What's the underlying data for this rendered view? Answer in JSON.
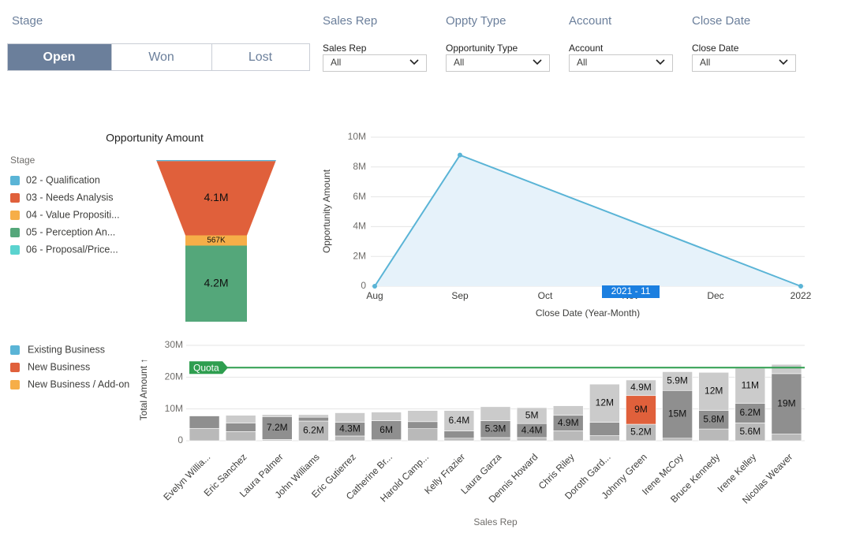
{
  "stage_filter": {
    "label": "Stage",
    "options": [
      "Open",
      "Won",
      "Lost"
    ],
    "selected": 0
  },
  "filters": [
    {
      "header": "Sales Rep",
      "label": "Sales Rep",
      "value": "All"
    },
    {
      "header": "Oppty Type",
      "label": "Opportunity Type",
      "value": "All"
    },
    {
      "header": "Account",
      "label": "Account",
      "value": "All"
    },
    {
      "header": "Close Date",
      "label": "Close Date",
      "value": "All"
    }
  ],
  "chart_data": [
    {
      "type": "funnel",
      "title": "Opportunity Amount",
      "legend_title": "Stage",
      "categories": [
        "02 - Qualification",
        "03 - Needs Analysis",
        "04 - Value Propositi...",
        "05 - Perception An...",
        "06 - Proposal/Price..."
      ],
      "colors": [
        "#5ab4d6",
        "#e0603b",
        "#f6ae48",
        "#54a77a",
        "#5bd3cf"
      ],
      "values": [
        60000,
        4100000,
        567000,
        4200000,
        0
      ],
      "value_labels": [
        null,
        "4.1M",
        "567K",
        "4.2M",
        null
      ]
    },
    {
      "type": "line",
      "ylabel": "Opportunity Amount",
      "xlabel": "Close Date (Year-Month)",
      "categories": [
        "Aug",
        "Sep",
        "Oct",
        "Nov",
        "Dec",
        "2022"
      ],
      "series": [
        {
          "color": "#5ab4d6",
          "x": [
            "Aug",
            "Sep",
            "2022"
          ],
          "values": [
            0,
            8800000,
            0
          ]
        }
      ],
      "ylim": [
        0,
        10000000
      ],
      "yticks": [
        0,
        {
          "value": 2000000,
          "label": "2M"
        },
        {
          "value": 4000000,
          "label": "4M"
        },
        {
          "value": 6000000,
          "label": "6M"
        },
        {
          "value": 8000000,
          "label": "8M"
        },
        {
          "value": 10000000,
          "label": "10M"
        }
      ],
      "hover_label": "2021 - 11",
      "grid": true
    },
    {
      "type": "stacked_bar",
      "ylabel": "Total Amount ↑",
      "xlabel": "Sales Rep",
      "categories": [
        "Evelyn Willia...",
        "Eric Sanchez",
        "Laura Palmer",
        "John Williams",
        "Eric Gutierrez",
        "Catherine Br...",
        "Harold Camp...",
        "Kelly Frazier",
        "Laura Garza",
        "Dennis Howard",
        "Chris Riley",
        "Doroth Gard...",
        "Johnny Green",
        "Irene McCoy",
        "Bruce Kennedy",
        "Irene Kelley",
        "Nicolas Weaver"
      ],
      "series": [
        {
          "name": "Existing Business",
          "color": "#5ab4d6",
          "dim_color": "#b9b9b9",
          "values": [
            3900000,
            2900000,
            400000,
            6200000,
            1500000,
            300000,
            3800000,
            800000,
            1000000,
            1000000,
            3100000,
            1600000,
            5200000,
            800000,
            3700000,
            5600000,
            2100000
          ],
          "value_labels": [
            null,
            null,
            null,
            "6.2M",
            null,
            null,
            null,
            null,
            null,
            null,
            null,
            null,
            "5.2M",
            null,
            null,
            "5.6M",
            null
          ]
        },
        {
          "name": "New Business",
          "color": "#e0603b",
          "dim_color": "#8f8f8f",
          "values": [
            3900000,
            2700000,
            7200000,
            1200000,
            4300000,
            6000000,
            2200000,
            2300000,
            5300000,
            4400000,
            4900000,
            4200000,
            9000000,
            15000000,
            5800000,
            6200000,
            19000000
          ],
          "value_labels": [
            null,
            null,
            "7.2M",
            null,
            "4.3M",
            "6M",
            null,
            null,
            "5.3M",
            "4.4M",
            "4.9M",
            null,
            "9M",
            "15M",
            "5.8M",
            "6.2M",
            "19M"
          ]
        },
        {
          "name": "New Business / Add-on",
          "color": "#f6ae48",
          "dim_color": "#cbcbcb",
          "values": [
            0,
            2400000,
            600000,
            800000,
            3000000,
            2700000,
            3500000,
            6400000,
            4400000,
            5000000,
            3000000,
            12000000,
            4900000,
            5900000,
            12000000,
            11000000,
            2900000
          ],
          "value_labels": [
            null,
            null,
            null,
            null,
            null,
            null,
            null,
            "6.4M",
            null,
            "5M",
            null,
            "12M",
            "4.9M",
            "5.9M",
            "12M",
            "11M",
            null
          ]
        }
      ],
      "highlight": {
        "series": 1,
        "category": 12
      },
      "ylim": [
        0,
        30000000
      ],
      "yticks": [
        0,
        {
          "value": 10000000,
          "label": "10M"
        },
        {
          "value": 20000000,
          "label": "20M"
        },
        {
          "value": 30000000,
          "label": "30M"
        }
      ],
      "quota": {
        "label": "Quota",
        "value": 23000000,
        "color": "#2e9e4f"
      },
      "grid": true,
      "legend": "left"
    }
  ]
}
